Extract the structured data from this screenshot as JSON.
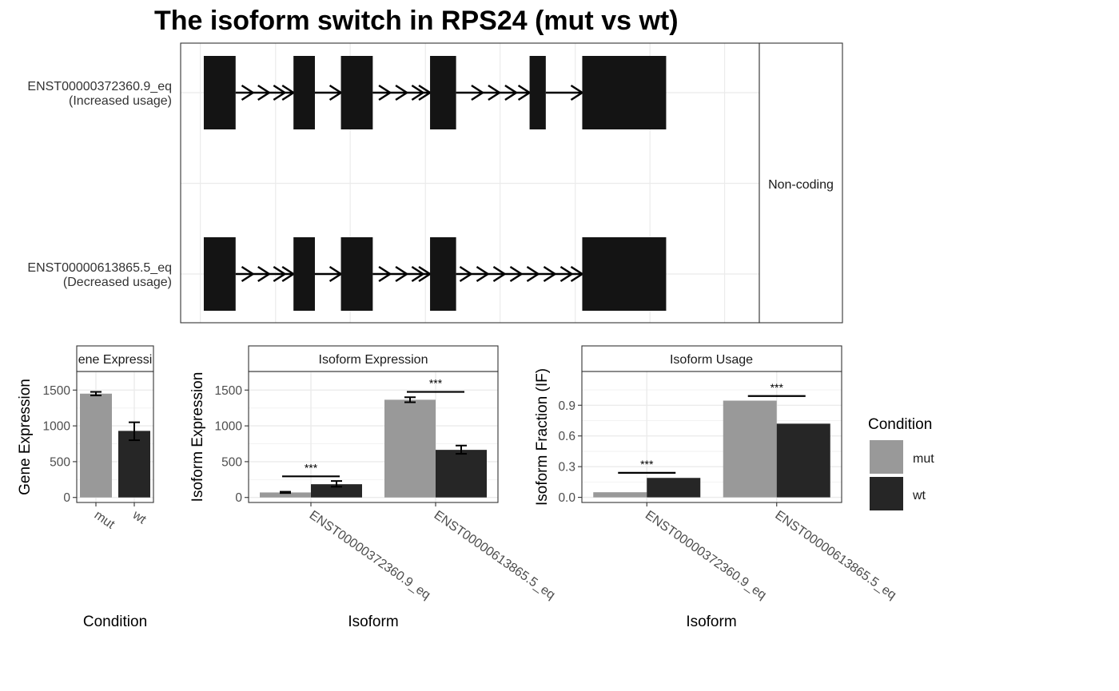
{
  "title": "The isoform switch in RPS24 (mut vs wt)",
  "colors": {
    "mut": "#999999",
    "wt": "#262626",
    "exon": "#141414",
    "grid": "#ebebeb",
    "panel_border": "#333333",
    "strip_fill": "#ffffff"
  },
  "chart_data": [
    {
      "type": "gene-structure",
      "strip_label": "Non-coding",
      "isoforms": [
        {
          "name": "ENST00000372360.9_eq",
          "note": "(Increased usage)",
          "exons": [
            [
              0.04,
              0.095
            ],
            [
              0.195,
              0.232
            ],
            [
              0.277,
              0.332
            ],
            [
              0.431,
              0.476
            ],
            [
              0.603,
              0.631
            ],
            [
              0.694,
              0.839
            ]
          ],
          "arrows": [
            [
              0.125,
              0.153,
              0.18
            ],
            [],
            [
              0.362,
              0.391,
              0.419
            ],
            [],
            [
              0.522,
              0.551,
              0.58
            ],
            [
              0.649,
              0.675
            ]
          ]
        },
        {
          "name": "ENST00000613865.5_eq",
          "note": "(Decreased usage)",
          "exons": [
            [
              0.04,
              0.095
            ],
            [
              0.195,
              0.232
            ],
            [
              0.277,
              0.332
            ],
            [
              0.431,
              0.476
            ],
            [
              0.694,
              0.839
            ]
          ],
          "arrows": [
            [
              0.125,
              0.153,
              0.18
            ],
            [],
            [
              0.362,
              0.391,
              0.419
            ],
            [
              0.502,
              0.531,
              0.56,
              0.589,
              0.618,
              0.647,
              0.676
            ]
          ]
        }
      ]
    },
    {
      "type": "bar",
      "strip_label": "Gene Expression",
      "strip_label_visible": "ene Expressi",
      "xlabel": "Condition",
      "ylabel": "Gene Expression",
      "categories": [
        "mut",
        "wt"
      ],
      "values": [
        1450,
        930
      ],
      "errors": [
        [
          1425,
          1475
        ],
        [
          800,
          1050
        ]
      ],
      "ylim": [
        -70,
        1760
      ],
      "yticks": [
        0,
        500,
        1000,
        1500
      ]
    },
    {
      "type": "bar",
      "strip_label": "Isoform Expression",
      "xlabel": "Isoform",
      "ylabel": "Isoform Expression",
      "categories": [
        "ENST00000372360.9_eq",
        "ENST00000613865.5_eq"
      ],
      "series": [
        {
          "name": "mut",
          "values": [
            70,
            1365
          ],
          "errors": [
            [
              62,
              80
            ],
            [
              1330,
              1400
            ]
          ]
        },
        {
          "name": "wt",
          "values": [
            185,
            665
          ],
          "errors": [
            [
              150,
              230
            ],
            [
              610,
              725
            ]
          ]
        }
      ],
      "significance": [
        {
          "category": 0,
          "label": "***",
          "y": 295
        },
        {
          "category": 1,
          "label": "***",
          "y": 1475
        }
      ],
      "ylim": [
        -70,
        1760
      ],
      "yticks": [
        0,
        500,
        1000,
        1500
      ]
    },
    {
      "type": "bar",
      "strip_label": "Isoform Usage",
      "xlabel": "Isoform",
      "ylabel": "Isoform Fraction (IF)",
      "categories": [
        "ENST00000372360.9_eq",
        "ENST00000613865.5_eq"
      ],
      "series": [
        {
          "name": "mut",
          "values": [
            0.05,
            0.945
          ]
        },
        {
          "name": "wt",
          "values": [
            0.19,
            0.72
          ]
        }
      ],
      "significance": [
        {
          "category": 0,
          "label": "***",
          "y": 0.24
        },
        {
          "category": 1,
          "label": "***",
          "y": 0.99
        }
      ],
      "ylim": [
        -0.05,
        1.23
      ],
      "yticks": [
        0.0,
        0.3,
        0.6,
        0.9
      ],
      "ytick_labels": [
        "0.0",
        "0.3",
        "0.6",
        "0.9"
      ]
    }
  ],
  "legend": {
    "title": "Condition",
    "items": [
      "mut",
      "wt"
    ]
  }
}
